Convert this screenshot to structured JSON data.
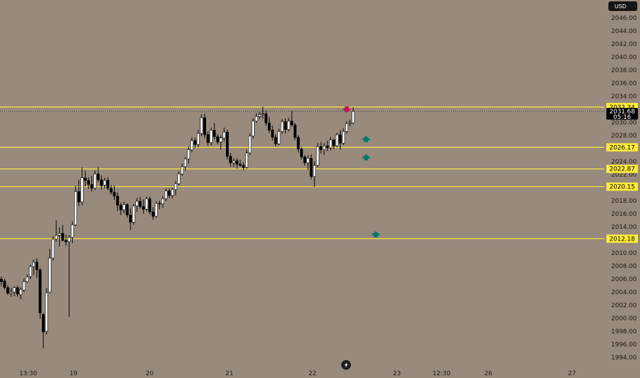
{
  "currency": "USD",
  "current_price": {
    "price": "2031.68",
    "countdown": "05:16",
    "value": 2031.68
  },
  "chart_data": {
    "type": "candlestick",
    "y_axis": {
      "ylim": [
        1993.0,
        2047.5
      ],
      "ticks": [
        "1994.00",
        "1996.00",
        "1998.00",
        "2000.00",
        "2002.00",
        "2004.00",
        "2006.00",
        "2008.00",
        "2010.00",
        "2012.00",
        "2014.00",
        "2016.00",
        "2018.00",
        "2020.00",
        "2022.00",
        "2024.00",
        "2026.00",
        "2028.00",
        "2030.00",
        "2032.00",
        "2034.00",
        "2036.00",
        "2038.00",
        "2040.00",
        "2042.00",
        "2044.00",
        "2046.00"
      ]
    },
    "x_axis": {
      "ticks": [
        "13:30",
        "19",
        "20",
        "21",
        "22",
        "23",
        "12:30",
        "26",
        "27"
      ]
    },
    "levels": [
      {
        "price": 2032.34,
        "label": "2032.34",
        "color": "#ffeb3b"
      },
      {
        "price": 2026.17,
        "label": "2026.17",
        "color": "#ffeb3b"
      },
      {
        "price": 2022.87,
        "label": "2022.87",
        "color": "#ffeb3b"
      },
      {
        "price": 2020.15,
        "label": "2020.15",
        "color": "#ffeb3b"
      },
      {
        "price": 2012.18,
        "label": "2012.18",
        "color": "#ffeb3b"
      }
    ],
    "signals": [
      {
        "type": "sell",
        "bar": 107,
        "price": 2032.0,
        "color": "#c2185b"
      },
      {
        "type": "buy",
        "bar": 113,
        "price": 2027.4,
        "color": "#00796b"
      },
      {
        "type": "buy",
        "bar": 113,
        "price": 2024.6,
        "color": "#00796b"
      },
      {
        "type": "buy",
        "bar": 116,
        "price": 2012.8,
        "color": "#00796b"
      }
    ],
    "bull_color": "#ffffff",
    "bear_color": "#000000",
    "candles": [
      [
        2006.0,
        2006.4,
        2004.9,
        2005.6
      ],
      [
        2005.7,
        2006.0,
        2004.4,
        2004.7
      ],
      [
        2004.7,
        2005.1,
        2003.6,
        2003.8
      ],
      [
        2003.8,
        2004.6,
        2003.3,
        2004.0
      ],
      [
        2004.0,
        2004.9,
        2003.4,
        2004.7
      ],
      [
        2004.7,
        2005.0,
        2003.3,
        2003.7
      ],
      [
        2003.6,
        2004.7,
        2002.9,
        2004.4
      ],
      [
        2004.3,
        2006.1,
        2004.0,
        2005.6
      ],
      [
        2005.6,
        2006.7,
        2005.4,
        2006.3
      ],
      [
        2006.4,
        2008.2,
        2006.0,
        2007.9
      ],
      [
        2007.9,
        2009.0,
        2006.6,
        2008.6
      ],
      [
        2008.6,
        2009.2,
        2006.2,
        2007.4
      ],
      [
        2007.4,
        2007.7,
        1999.9,
        2000.8
      ],
      [
        2000.6,
        2000.8,
        1995.4,
        1997.9
      ],
      [
        1998.0,
        2004.6,
        1997.5,
        2003.9
      ],
      [
        2004.0,
        2010.6,
        2003.9,
        2009.2
      ],
      [
        2009.2,
        2012.6,
        2008.8,
        2012.1
      ],
      [
        2012.1,
        2015.0,
        2011.7,
        2012.7
      ],
      [
        2012.7,
        2013.9,
        2011.0,
        2013.0
      ],
      [
        2013.0,
        2014.3,
        2011.8,
        2011.9
      ],
      [
        2011.9,
        2012.8,
        2011.1,
        2011.7
      ],
      [
        2011.7,
        2012.7,
        2000.2,
        2012.4
      ],
      [
        2012.4,
        2014.8,
        2011.5,
        2014.3
      ],
      [
        2014.3,
        2020.3,
        2014.1,
        2019.4
      ],
      [
        2019.4,
        2021.2,
        2017.2,
        2017.8
      ],
      [
        2017.8,
        2023.1,
        2017.3,
        2021.5
      ],
      [
        2021.5,
        2022.6,
        2020.2,
        2021.1
      ],
      [
        2021.1,
        2021.6,
        2019.8,
        2020.5
      ],
      [
        2020.5,
        2021.8,
        2019.4,
        2019.9
      ],
      [
        2019.9,
        2022.6,
        2019.6,
        2022.1
      ],
      [
        2022.1,
        2023.2,
        2020.8,
        2021.2
      ],
      [
        2021.2,
        2021.9,
        2019.7,
        2020.3
      ],
      [
        2020.4,
        2021.5,
        2019.9,
        2021.1
      ],
      [
        2021.1,
        2021.6,
        2019.6,
        2019.9
      ],
      [
        2019.9,
        2020.4,
        2018.9,
        2019.3
      ],
      [
        2019.3,
        2020.3,
        2018.1,
        2018.7
      ],
      [
        2018.7,
        2019.3,
        2016.4,
        2017.3
      ],
      [
        2017.3,
        2017.7,
        2015.8,
        2016.6
      ],
      [
        2016.6,
        2017.8,
        2016.1,
        2017.4
      ],
      [
        2017.4,
        2017.6,
        2015.4,
        2015.8
      ],
      [
        2015.8,
        2016.8,
        2013.5,
        2014.7
      ],
      [
        2014.7,
        2017.5,
        2014.3,
        2017.2
      ],
      [
        2017.2,
        2018.4,
        2016.3,
        2017.9
      ],
      [
        2017.9,
        2018.6,
        2016.8,
        2017.1
      ],
      [
        2017.1,
        2018.2,
        2016.0,
        2016.7
      ],
      [
        2016.7,
        2018.6,
        2016.4,
        2018.3
      ],
      [
        2018.3,
        2018.6,
        2015.9,
        2016.3
      ],
      [
        2016.3,
        2017.0,
        2015.1,
        2015.6
      ],
      [
        2015.6,
        2017.9,
        2015.4,
        2017.6
      ],
      [
        2017.6,
        2018.0,
        2016.7,
        2017.5
      ],
      [
        2017.5,
        2018.7,
        2016.9,
        2018.3
      ],
      [
        2018.3,
        2019.9,
        2017.9,
        2019.5
      ],
      [
        2019.5,
        2019.9,
        2018.4,
        2018.8
      ],
      [
        2018.8,
        2020.0,
        2018.3,
        2019.7
      ],
      [
        2019.7,
        2021.0,
        2018.8,
        2020.6
      ],
      [
        2020.6,
        2022.5,
        2020.3,
        2022.1
      ],
      [
        2022.1,
        2023.7,
        2021.8,
        2023.2
      ],
      [
        2023.2,
        2024.7,
        2022.6,
        2024.4
      ],
      [
        2024.4,
        2026.3,
        2023.7,
        2025.8
      ],
      [
        2025.8,
        2027.7,
        2025.4,
        2027.2
      ],
      [
        2027.2,
        2027.6,
        2026.1,
        2026.6
      ],
      [
        2026.6,
        2028.8,
        2026.2,
        2028.3
      ],
      [
        2028.3,
        2031.2,
        2027.9,
        2030.7
      ],
      [
        2030.7,
        2031.3,
        2027.6,
        2028.1
      ],
      [
        2028.1,
        2028.6,
        2026.4,
        2026.9
      ],
      [
        2026.9,
        2029.2,
        2026.5,
        2028.8
      ],
      [
        2028.8,
        2029.9,
        2027.4,
        2027.8
      ],
      [
        2027.8,
        2028.2,
        2026.6,
        2027.0
      ],
      [
        2027.0,
        2028.0,
        2025.8,
        2027.6
      ],
      [
        2027.6,
        2029.2,
        2027.1,
        2028.5
      ],
      [
        2028.5,
        2028.9,
        2024.3,
        2024.8
      ],
      [
        2024.8,
        2025.3,
        2023.2,
        2023.8
      ],
      [
        2023.8,
        2024.5,
        2023.2,
        2024.1
      ],
      [
        2024.1,
        2024.5,
        2022.9,
        2023.6
      ],
      [
        2023.6,
        2024.3,
        2023.2,
        2023.4
      ],
      [
        2023.4,
        2023.9,
        2022.7,
        2023.1
      ],
      [
        2023.1,
        2025.8,
        2022.9,
        2025.3
      ],
      [
        2025.3,
        2028.3,
        2025.0,
        2027.9
      ],
      [
        2027.9,
        2030.6,
        2027.5,
        2030.2
      ],
      [
        2030.2,
        2031.4,
        2029.9,
        2030.9
      ],
      [
        2030.9,
        2031.6,
        2030.5,
        2031.2
      ],
      [
        2031.2,
        2032.4,
        2030.6,
        2031.3
      ],
      [
        2031.3,
        2031.8,
        2029.5,
        2029.9
      ],
      [
        2029.9,
        2030.8,
        2028.4,
        2028.8
      ],
      [
        2028.8,
        2029.5,
        2027.2,
        2027.7
      ],
      [
        2027.7,
        2028.2,
        2026.3,
        2026.7
      ],
      [
        2026.7,
        2029.0,
        2026.5,
        2028.6
      ],
      [
        2028.6,
        2030.5,
        2028.2,
        2030.1
      ],
      [
        2030.1,
        2030.6,
        2028.3,
        2028.9
      ],
      [
        2028.9,
        2030.7,
        2028.6,
        2030.2
      ],
      [
        2030.2,
        2031.7,
        2029.4,
        2029.6
      ],
      [
        2029.6,
        2029.9,
        2027.3,
        2027.7
      ],
      [
        2027.7,
        2028.0,
        2025.4,
        2025.9
      ],
      [
        2025.9,
        2026.2,
        2024.3,
        2024.7
      ],
      [
        2024.7,
        2025.0,
        2023.4,
        2023.8
      ],
      [
        2023.8,
        2025.0,
        2022.7,
        2024.5
      ],
      [
        2024.5,
        2025.1,
        2021.3,
        2021.7
      ],
      [
        2021.7,
        2024.0,
        2020.1,
        2023.4
      ],
      [
        2023.4,
        2026.8,
        2023.1,
        2026.3
      ],
      [
        2026.3,
        2027.0,
        2025.2,
        2025.8
      ],
      [
        2025.8,
        2026.8,
        2025.0,
        2026.4
      ],
      [
        2026.4,
        2027.2,
        2025.6,
        2026.1
      ],
      [
        2026.1,
        2027.8,
        2025.7,
        2027.3
      ],
      [
        2027.3,
        2027.5,
        2025.9,
        2026.4
      ],
      [
        2026.4,
        2028.4,
        2026.2,
        2028.1
      ],
      [
        2028.1,
        2028.8,
        2025.8,
        2026.8
      ],
      [
        2026.8,
        2029.1,
        2026.5,
        2028.6
      ],
      [
        2028.6,
        2030.2,
        2028.3,
        2029.8
      ],
      [
        2029.8,
        2030.4,
        2029.4,
        2029.9
      ],
      [
        2029.9,
        2032.3,
        2029.7,
        2031.68
      ]
    ]
  }
}
